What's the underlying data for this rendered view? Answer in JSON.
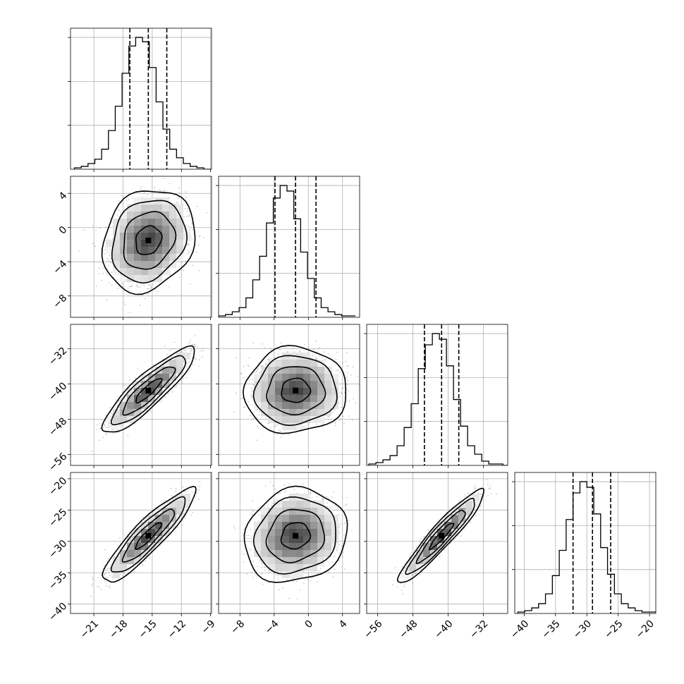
{
  "chart_data": {
    "type": "scatter",
    "grid": true,
    "parameters": [
      {
        "index": 0,
        "range": [
          -23.4,
          -8.9
        ],
        "ticks": [
          -21,
          -18,
          -15,
          -12,
          -9
        ],
        "quantiles": [
          -17.3,
          -15.4,
          -13.5
        ],
        "tick_labels": [
          "−21",
          "−18",
          "−15",
          "−12",
          "−9"
        ]
      },
      {
        "index": 1,
        "range": [
          -10.5,
          6.0
        ],
        "ticks": [
          -8,
          -4,
          0,
          4
        ],
        "quantiles": [
          -3.9,
          -1.5,
          0.9
        ],
        "tick_labels": [
          "−8",
          "−4",
          "0",
          "4"
        ]
      },
      {
        "index": 2,
        "range": [
          -58.5,
          -26.5
        ],
        "ticks": [
          -56,
          -48,
          -40,
          -32
        ],
        "quantiles": [
          -45.4,
          -41.5,
          -37.6
        ],
        "tick_labels": [
          "−56",
          "−48",
          "−40",
          "−32"
        ]
      },
      {
        "index": 3,
        "range": [
          -41.5,
          -19.0
        ],
        "ticks": [
          -40,
          -35,
          -30,
          -25,
          -20
        ],
        "quantiles": [
          -32.2,
          -29.1,
          -26.2
        ],
        "tick_labels": [
          "−40",
          "−35",
          "−30",
          "−25",
          "−20"
        ]
      }
    ],
    "histograms": [
      {
        "param": 0,
        "bin_start": -23.0,
        "bin_width": 0.7,
        "counts": [
          1,
          2,
          4,
          7,
          14,
          27,
          44,
          67,
          86,
          92,
          89,
          71,
          47,
          28,
          14,
          8,
          4,
          2,
          1,
          0
        ]
      },
      {
        "param": 1,
        "bin_start": -10.5,
        "bin_width": 0.8,
        "counts": [
          1,
          2,
          4,
          7,
          14,
          27,
          44,
          68,
          86,
          95,
          91,
          71,
          47,
          28,
          14,
          7,
          4,
          2,
          1,
          1
        ]
      },
      {
        "param": 2,
        "bin_start": -58.0,
        "bin_width": 1.6,
        "counts": [
          1,
          2,
          4,
          7,
          14,
          27,
          44,
          69,
          86,
          94,
          90,
          71,
          47,
          28,
          14,
          8,
          3,
          1,
          1,
          0
        ]
      },
      {
        "param": 3,
        "bin_start": -41.0,
        "bin_width": 1.1,
        "counts": [
          1,
          2,
          4,
          7,
          14,
          27,
          45,
          67,
          86,
          94,
          90,
          71,
          47,
          28,
          14,
          7,
          4,
          2,
          1,
          1
        ]
      }
    ],
    "correlations": [
      {
        "row": 1,
        "col": 0,
        "rho": 0.18
      },
      {
        "row": 2,
        "col": 0,
        "rho": 0.88
      },
      {
        "row": 2,
        "col": 1,
        "rho": 0.03
      },
      {
        "row": 3,
        "col": 0,
        "rho": 0.9
      },
      {
        "row": 3,
        "col": 1,
        "rho": 0.12
      },
      {
        "row": 3,
        "col": 2,
        "rho": 0.94
      }
    ]
  }
}
